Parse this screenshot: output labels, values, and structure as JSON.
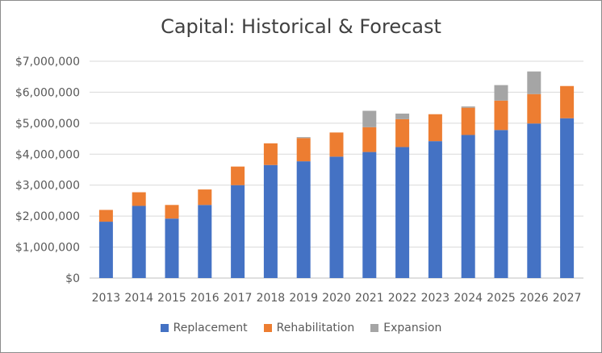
{
  "chart_data": {
    "type": "bar",
    "stacked": true,
    "title": "Capital: Historical & Forecast",
    "xlabel": "",
    "ylabel": "",
    "categories": [
      "2013",
      "2014",
      "2015",
      "2016",
      "2017",
      "2018",
      "2019",
      "2020",
      "2021",
      "2022",
      "2023",
      "2024",
      "2025",
      "2026",
      "2027"
    ],
    "series": [
      {
        "name": "Replacement",
        "color": "#4472c4",
        "values": [
          1820000,
          2330000,
          1920000,
          2360000,
          3000000,
          3650000,
          3770000,
          3920000,
          4070000,
          4230000,
          4420000,
          4620000,
          4780000,
          4990000,
          5160000
        ]
      },
      {
        "name": "Rehabilitation",
        "color": "#ed7d31",
        "values": [
          380000,
          440000,
          440000,
          500000,
          600000,
          700000,
          750000,
          780000,
          800000,
          900000,
          870000,
          880000,
          950000,
          950000,
          1040000
        ]
      },
      {
        "name": "Expansion",
        "color": "#a5a5a5",
        "values": [
          0,
          0,
          0,
          0,
          0,
          0,
          30000,
          0,
          530000,
          180000,
          0,
          40000,
          500000,
          730000,
          0
        ]
      }
    ],
    "ylim": [
      0,
      7000000
    ],
    "yticks": [
      0,
      1000000,
      2000000,
      3000000,
      4000000,
      5000000,
      6000000,
      7000000
    ],
    "ytick_labels": [
      "$0",
      "$1,000,000",
      "$2,000,000",
      "$3,000,000",
      "$4,000,000",
      "$5,000,000",
      "$6,000,000",
      "$7,000,000"
    ],
    "grid": true,
    "legend_position": "bottom"
  }
}
